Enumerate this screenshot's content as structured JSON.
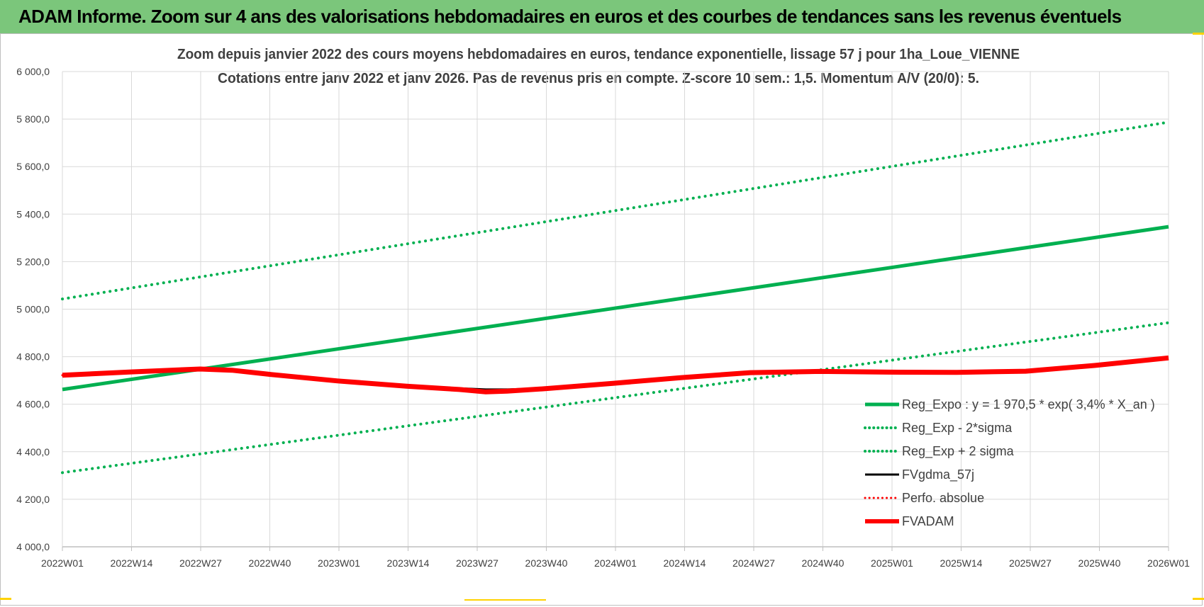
{
  "banner": {
    "title": "ADAM Informe. Zoom sur 4 ans des valorisations hebdomadaires en euros et des courbes de tendances sans les revenus éventuels",
    "color": "#7bc67b"
  },
  "chart_data": {
    "type": "line",
    "title_line1": "Zoom depuis janvier 2022 des cours moyens hebdomadaires en euros, tendance exponentielle, lissage 57 j pour 1ha_Loue_VIENNE",
    "title_line2": "Cotations entre janv 2022 et janv 2026. Pas de revenus pris en compte. Z-score 10 sem.: 1,5. Momentum A/V (20/0): 5.",
    "xlabel": "",
    "ylabel": "",
    "x_ticks": [
      "2022W01",
      "2022W14",
      "2022W27",
      "2022W40",
      "2023W01",
      "2023W14",
      "2023W27",
      "2023W40",
      "2024W01",
      "2024W14",
      "2024W27",
      "2024W40",
      "2025W01",
      "2025W14",
      "2025W27",
      "2025W40",
      "2026W01"
    ],
    "x_range_weeks": [
      0,
      209
    ],
    "y_ticks": [
      "4 000,0",
      "4 200,0",
      "4 400,0",
      "4 600,0",
      "4 800,0",
      "5 000,0",
      "5 200,0",
      "5 400,0",
      "5 600,0",
      "5 800,0",
      "6 000,0"
    ],
    "ylim": [
      4000,
      6000
    ],
    "grid": true,
    "legend_position": "bottom-right",
    "series": [
      {
        "name": "Reg_Expo : y = 1 970,5 * exp( 3,4% *  X_an )",
        "color": "#00b050",
        "style": "solid",
        "width": 5,
        "points": [
          [
            0,
            4662
          ],
          [
            209,
            5347
          ]
        ]
      },
      {
        "name": "Reg_Exp - 2*sigma",
        "color": "#00b050",
        "style": "dotted",
        "width": 4,
        "points": [
          [
            0,
            4312
          ],
          [
            209,
            4943
          ]
        ]
      },
      {
        "name": "Reg_Exp + 2 sigma",
        "color": "#00b050",
        "style": "dotted",
        "width": 4,
        "points": [
          [
            0,
            5043
          ],
          [
            209,
            5787
          ]
        ]
      },
      {
        "name": "FVgdma_57j",
        "color": "#000000",
        "style": "solid",
        "width": 3,
        "points": [
          [
            0,
            4721
          ],
          [
            13,
            4735
          ],
          [
            26,
            4745
          ],
          [
            32,
            4742
          ],
          [
            39,
            4728
          ],
          [
            52,
            4700
          ],
          [
            65,
            4678
          ],
          [
            75,
            4667
          ],
          [
            80,
            4662
          ],
          [
            84,
            4662
          ],
          [
            91,
            4667
          ],
          [
            104,
            4690
          ],
          [
            117,
            4713
          ],
          [
            130,
            4733
          ],
          [
            143,
            4738
          ],
          [
            156,
            4737
          ],
          [
            169,
            4735
          ],
          [
            182,
            4740
          ],
          [
            195,
            4763
          ],
          [
            209,
            4792
          ]
        ]
      },
      {
        "name": "Perfo. absolue",
        "color": "#ff0000",
        "style": "dotted",
        "width": 3,
        "points": [
          [
            0,
            4722
          ],
          [
            13,
            4736
          ],
          [
            26,
            4748
          ],
          [
            32,
            4743
          ],
          [
            39,
            4726
          ],
          [
            52,
            4698
          ],
          [
            65,
            4676
          ],
          [
            75,
            4662
          ],
          [
            80,
            4652
          ],
          [
            84,
            4655
          ],
          [
            91,
            4665
          ],
          [
            104,
            4688
          ],
          [
            117,
            4712
          ],
          [
            130,
            4733
          ],
          [
            143,
            4738
          ],
          [
            156,
            4735
          ],
          [
            169,
            4734
          ],
          [
            182,
            4739
          ],
          [
            195,
            4763
          ],
          [
            209,
            4795
          ]
        ]
      },
      {
        "name": "FVADAM",
        "color": "#ff0000",
        "style": "solid",
        "width": 7,
        "points": [
          [
            0,
            4722
          ],
          [
            13,
            4736
          ],
          [
            26,
            4748
          ],
          [
            32,
            4743
          ],
          [
            39,
            4726
          ],
          [
            52,
            4698
          ],
          [
            65,
            4676
          ],
          [
            75,
            4662
          ],
          [
            80,
            4652
          ],
          [
            84,
            4655
          ],
          [
            91,
            4665
          ],
          [
            104,
            4688
          ],
          [
            117,
            4712
          ],
          [
            130,
            4733
          ],
          [
            143,
            4738
          ],
          [
            156,
            4735
          ],
          [
            169,
            4734
          ],
          [
            182,
            4739
          ],
          [
            195,
            4763
          ],
          [
            209,
            4795
          ]
        ]
      }
    ]
  }
}
